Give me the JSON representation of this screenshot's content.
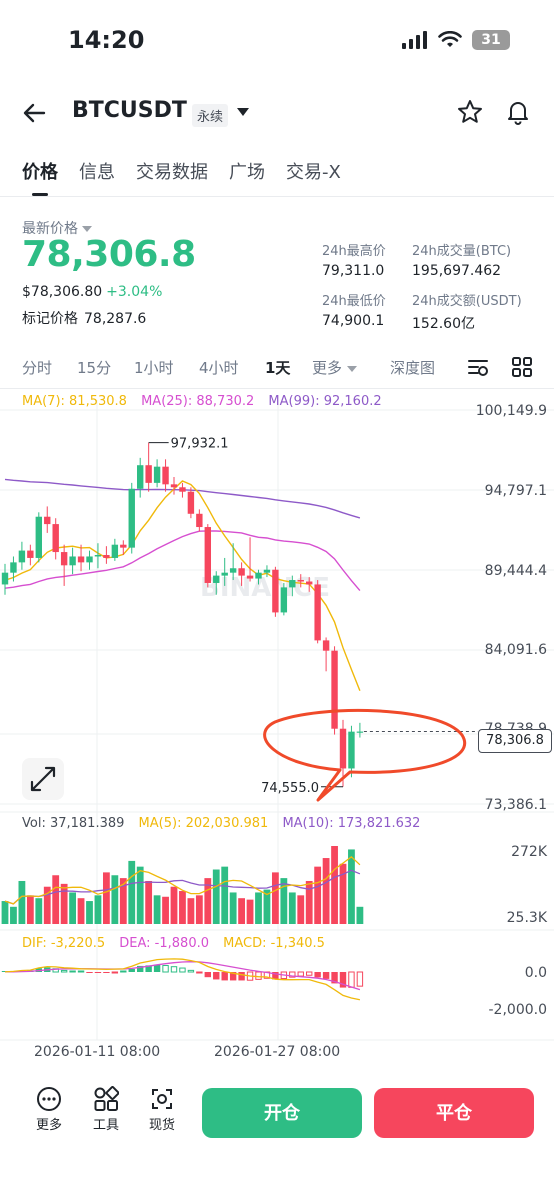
{
  "status": {
    "time": "14:20",
    "battery": "31"
  },
  "header": {
    "pair": "BTCUSDT",
    "contract_type": "永续"
  },
  "tabs": [
    "价格",
    "信息",
    "交易数据",
    "广场",
    "交易-X"
  ],
  "ticker": {
    "last_price_label": "最新价格",
    "last_price": "78,306.8",
    "usd_price": "$78,306.80",
    "change": "+3.04%",
    "mark_label": "标记价格",
    "mark_price": "78,287.6"
  },
  "stats": {
    "high_label": "24h最高价",
    "high": "79,311.0",
    "low_label": "24h最低价",
    "low": "74,900.1",
    "vol_btc_label": "24h成交量(BTC)",
    "vol_btc": "195,697.462",
    "vol_usdt_label": "24h成交额(USDT)",
    "vol_usdt": "152.60亿"
  },
  "intervals": [
    "分时",
    "15分",
    "1小时",
    "4小时",
    "1天",
    "更多",
    "深度图"
  ],
  "indicators": {
    "ma7": "MA(7): 81,530.8",
    "ma25": "MA(25): 88,730.2",
    "ma99": "MA(99): 92,160.2",
    "vol": "Vol: 37,181.389",
    "vol_ma5": "MA(5): 202,030.981",
    "vol_ma10": "MA(10): 173,821.632",
    "dif": "DIF: -3,220.5",
    "dea": "DEA: -1,880.0",
    "macd": "MACD: -1,340.5"
  },
  "colors": {
    "up": "#2ebd85",
    "down": "#f6465d",
    "ma7": "#f0b90b",
    "ma25": "#d64fd0",
    "ma99": "#8e5ac8",
    "annotation": "#f04a2a"
  },
  "chart_data": {
    "type": "candlestick",
    "y_axis_labels": [
      "100,149.9",
      "94,797.1",
      "89,444.4",
      "84,091.6",
      "78,738.9",
      "73,386.1"
    ],
    "price_range": [
      73386.1,
      100149.9
    ],
    "high_marker": "97,932.1",
    "low_marker": "74,555.0",
    "current_price": "78,306.8",
    "watermark": "BINANCE",
    "volume_axis_labels": [
      "272K",
      "25.3K"
    ],
    "macd_axis_labels": [
      "0.0",
      "-2,000.0"
    ],
    "x_axis_labels": [
      "2026-01-11 08:00",
      "2026-01-27 08:00"
    ],
    "candles": [
      {
        "o": 88300,
        "h": 89700,
        "l": 87600,
        "c": 89100
      },
      {
        "o": 89100,
        "h": 90200,
        "l": 88500,
        "c": 89800
      },
      {
        "o": 89800,
        "h": 91200,
        "l": 89300,
        "c": 90600
      },
      {
        "o": 90600,
        "h": 91000,
        "l": 89600,
        "c": 90100
      },
      {
        "o": 90100,
        "h": 93200,
        "l": 89800,
        "c": 92900
      },
      {
        "o": 92900,
        "h": 93600,
        "l": 91800,
        "c": 92400
      },
      {
        "o": 92400,
        "h": 92800,
        "l": 90000,
        "c": 90500
      },
      {
        "o": 90500,
        "h": 91000,
        "l": 88200,
        "c": 89600
      },
      {
        "o": 89600,
        "h": 90800,
        "l": 89000,
        "c": 90200
      },
      {
        "o": 90200,
        "h": 91000,
        "l": 89200,
        "c": 89800
      },
      {
        "o": 89800,
        "h": 90600,
        "l": 89300,
        "c": 90200
      },
      {
        "o": 90200,
        "h": 91100,
        "l": 89400,
        "c": 90300
      },
      {
        "o": 90300,
        "h": 90900,
        "l": 89700,
        "c": 90100
      },
      {
        "o": 90100,
        "h": 91400,
        "l": 89900,
        "c": 91000
      },
      {
        "o": 91000,
        "h": 91300,
        "l": 90300,
        "c": 90800
      },
      {
        "o": 90800,
        "h": 95200,
        "l": 90400,
        "c": 94800
      },
      {
        "o": 94800,
        "h": 96900,
        "l": 94200,
        "c": 96400
      },
      {
        "o": 96400,
        "h": 97932,
        "l": 94600,
        "c": 95200
      },
      {
        "o": 95200,
        "h": 96800,
        "l": 94900,
        "c": 96300
      },
      {
        "o": 96300,
        "h": 96800,
        "l": 94600,
        "c": 95100
      },
      {
        "o": 95100,
        "h": 95600,
        "l": 94400,
        "c": 94900
      },
      {
        "o": 94900,
        "h": 95200,
        "l": 94200,
        "c": 94600
      },
      {
        "o": 94600,
        "h": 94900,
        "l": 92800,
        "c": 93100
      },
      {
        "o": 93100,
        "h": 93400,
        "l": 91900,
        "c": 92200
      },
      {
        "o": 92200,
        "h": 92400,
        "l": 88100,
        "c": 88400
      },
      {
        "o": 88400,
        "h": 89200,
        "l": 87600,
        "c": 88900
      },
      {
        "o": 88900,
        "h": 90100,
        "l": 88200,
        "c": 89100
      },
      {
        "o": 89100,
        "h": 91100,
        "l": 88600,
        "c": 89400
      },
      {
        "o": 89400,
        "h": 89800,
        "l": 88200,
        "c": 88900
      },
      {
        "o": 88900,
        "h": 91500,
        "l": 88500,
        "c": 88700
      },
      {
        "o": 88700,
        "h": 89300,
        "l": 88300,
        "c": 89100
      },
      {
        "o": 89100,
        "h": 89600,
        "l": 88800,
        "c": 89300
      },
      {
        "o": 89300,
        "h": 89500,
        "l": 86100,
        "c": 86400
      },
      {
        "o": 86400,
        "h": 88400,
        "l": 86200,
        "c": 88100
      },
      {
        "o": 88100,
        "h": 88900,
        "l": 87500,
        "c": 88600
      },
      {
        "o": 88600,
        "h": 89000,
        "l": 88100,
        "c": 88500
      },
      {
        "o": 88500,
        "h": 88800,
        "l": 87800,
        "c": 88300
      },
      {
        "o": 88300,
        "h": 88600,
        "l": 84300,
        "c": 84500
      },
      {
        "o": 84500,
        "h": 84700,
        "l": 82400,
        "c": 83800
      },
      {
        "o": 83800,
        "h": 84100,
        "l": 78100,
        "c": 78500
      },
      {
        "o": 78500,
        "h": 79100,
        "l": 74555,
        "c": 75800
      },
      {
        "o": 75800,
        "h": 78700,
        "l": 75200,
        "c": 78300
      },
      {
        "o": 78300,
        "h": 78900,
        "l": 77900,
        "c": 78306.8
      }
    ],
    "volumes": [
      80,
      60,
      150,
      100,
      90,
      130,
      170,
      140,
      110,
      90,
      80,
      100,
      180,
      170,
      160,
      220,
      200,
      150,
      100,
      95,
      130,
      115,
      90,
      100,
      160,
      190,
      200,
      110,
      90,
      85,
      110,
      120,
      180,
      160,
      110,
      100,
      150,
      200,
      230,
      272,
      210,
      260,
      60
    ]
  }
}
